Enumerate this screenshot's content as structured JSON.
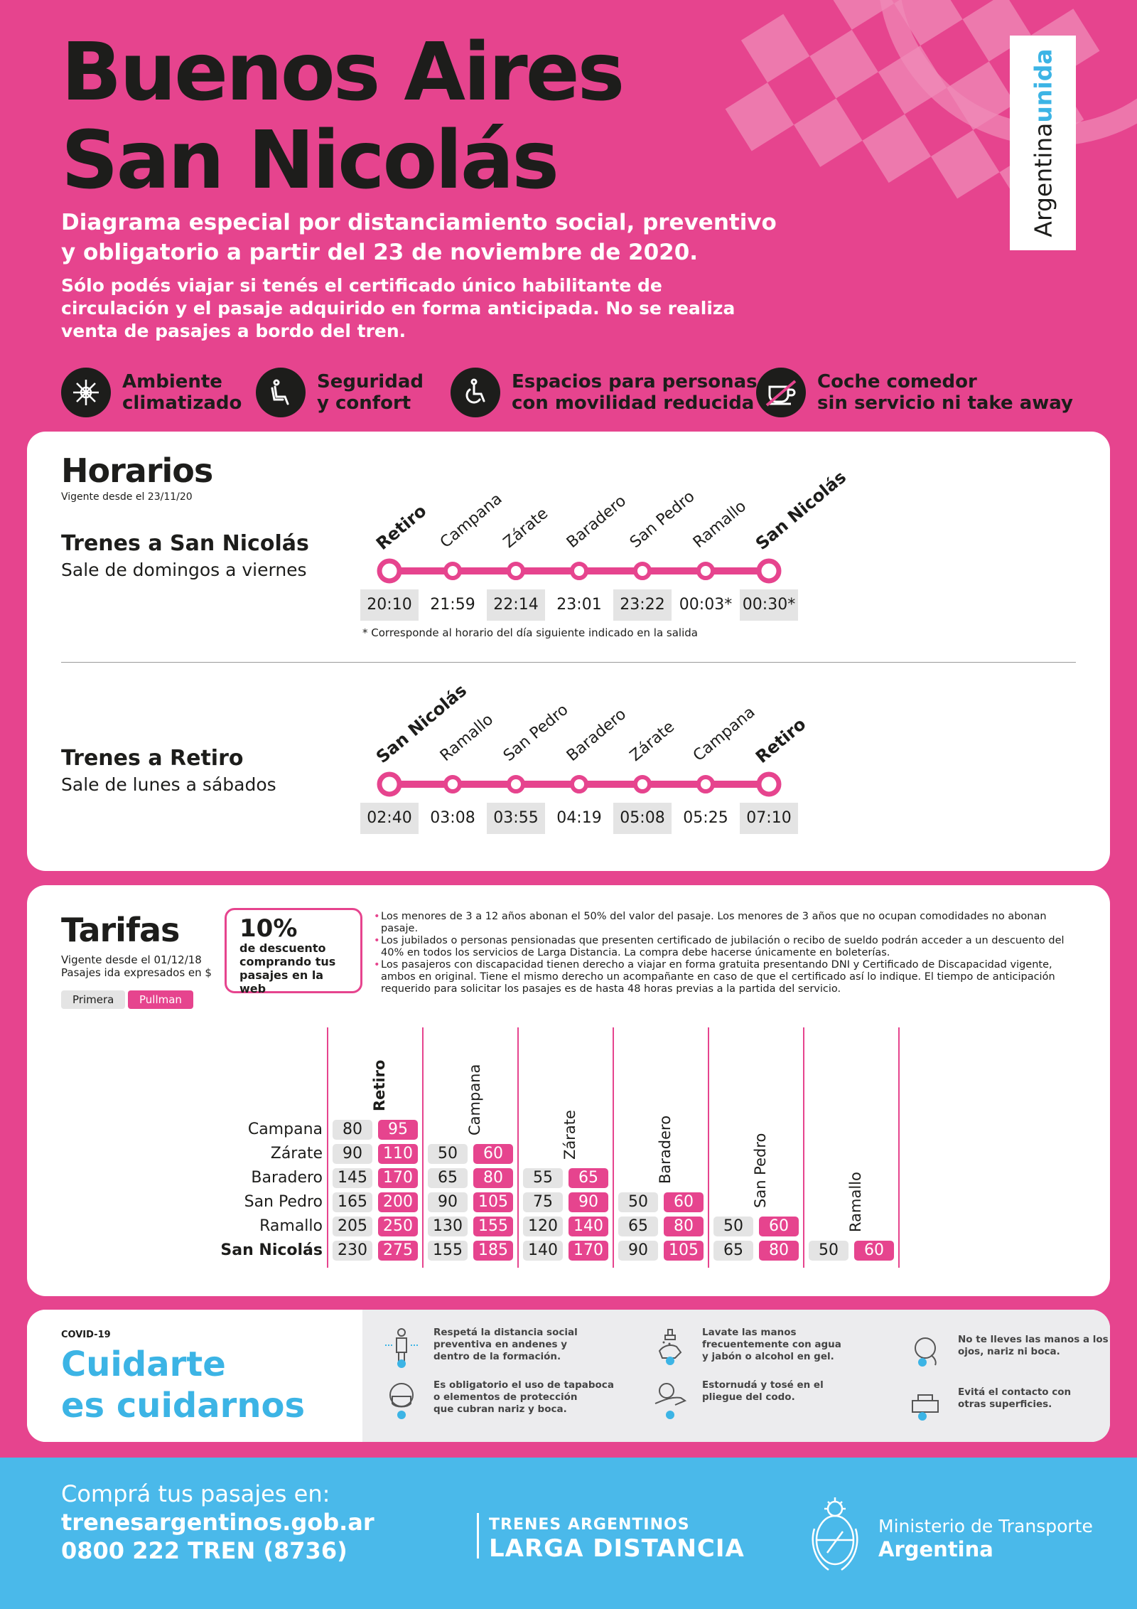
{
  "header": {
    "title_line1": "Buenos Aires",
    "title_line2": "San Nicolás",
    "subtitle": "Diagrama especial por distanciamiento social, preventivo y obligatorio a partir del 23 de noviembre de 2020.",
    "intro": "Sólo podés viajar si tenés el certificado único habilitante de circulación y el pasaje adquirido en forma anticipada. No se realiza venta de pasajes a bordo del tren.",
    "brand_argentina": "Argentina",
    "brand_unida": "unida"
  },
  "features": [
    {
      "label": "Ambiente\nclimatizado",
      "icon": "climate-icon"
    },
    {
      "label": "Seguridad\ny confort",
      "icon": "seat-icon"
    },
    {
      "label": "Espacios para personas\ncon movilidad reducida",
      "icon": "wheelchair-icon"
    },
    {
      "label": "Coche comedor\nsin servicio ni take away",
      "icon": "no-coffee-icon"
    }
  ],
  "horarios": {
    "title": "Horarios",
    "valid": "Vigente desde el 23/11/20",
    "footnote": "* Corresponde al horario del día siguiente indicado en la salida",
    "routes": [
      {
        "name": "Trenes a San Nicolás",
        "days": "Sale de domingos a viernes",
        "stations": [
          "Retiro",
          "Campana",
          "Zárate",
          "Baradero",
          "San Pedro",
          "Ramallo",
          "San Nicolás"
        ],
        "times": [
          "20:10",
          "21:59",
          "22:14",
          "23:01",
          "23:22",
          "00:03*",
          "00:30*"
        ]
      },
      {
        "name": "Trenes a Retiro",
        "days": "Sale de lunes a sábados",
        "stations": [
          "San Nicolás",
          "Ramallo",
          "San Pedro",
          "Baradero",
          "Zárate",
          "Campana",
          "Retiro"
        ],
        "times": [
          "02:40",
          "03:08",
          "03:55",
          "04:19",
          "05:08",
          "05:25",
          "07:10"
        ]
      }
    ]
  },
  "tarifas": {
    "title": "Tarifas",
    "valid_line1": "Vigente desde el 01/12/18",
    "valid_line2": "Pasajes ida expresados en $",
    "legend_primera": "Primera",
    "legend_pullman": "Pullman",
    "discount_big": "10%",
    "discount_small": "de descuento\ncomprando tus\npasajes en la web",
    "notes": [
      "Los menores de 3 a 12 años abonan el 50% del valor del pasaje. Los menores de 3 años que no ocupan comodidades no abonan pasaje.",
      "Los jubilados o personas pensionadas que presenten certificado de jubilación o recibo de sueldo podrán acceder a un descuento del 40% en todos los servicios de Larga Distancia. La compra debe hacerse únicamente en boleterías.",
      "Los pasajeros con discapacidad tienen derecho a viajar en forma gratuita presentando DNI y Certificado de Discapacidad vigente, ambos en original. Tiene el mismo derecho un acompañante en caso de que el certificado así lo indique. El tiempo de anticipación requerido para solicitar los pasajes es de hasta 48 horas previas a la partida del servicio."
    ],
    "columns": [
      "Retiro",
      "Campana",
      "Zárate",
      "Baradero",
      "San Pedro",
      "Ramallo"
    ],
    "rows": [
      {
        "dest": "Campana",
        "fares": [
          [
            80,
            95
          ]
        ]
      },
      {
        "dest": "Zárate",
        "fares": [
          [
            90,
            110
          ],
          [
            50,
            60
          ]
        ]
      },
      {
        "dest": "Baradero",
        "fares": [
          [
            145,
            170
          ],
          [
            65,
            80
          ],
          [
            55,
            65
          ]
        ]
      },
      {
        "dest": "San Pedro",
        "fares": [
          [
            165,
            200
          ],
          [
            90,
            105
          ],
          [
            75,
            90
          ],
          [
            50,
            60
          ]
        ]
      },
      {
        "dest": "Ramallo",
        "fares": [
          [
            205,
            250
          ],
          [
            130,
            155
          ],
          [
            120,
            140
          ],
          [
            65,
            80
          ],
          [
            50,
            60
          ]
        ]
      },
      {
        "dest": "San Nicolás",
        "fares": [
          [
            230,
            275
          ],
          [
            155,
            185
          ],
          [
            140,
            170
          ],
          [
            90,
            105
          ],
          [
            65,
            80
          ],
          [
            50,
            60
          ]
        ]
      }
    ]
  },
  "covid": {
    "tag": "COVID-19",
    "title": "Cuidarte\nes cuidarnos",
    "tips": [
      {
        "text": "Respetá la distancia social\npreventiva en andenes y\ndentro de la formación.",
        "icon": "distance-icon"
      },
      {
        "text": "Lavate las manos\nfrecuentemente con agua\ny jabón o alcohol en gel.",
        "icon": "hand-wash-icon"
      },
      {
        "text": "No te lleves las manos a los\nojos, nariz ni boca.",
        "icon": "no-touch-face-icon"
      },
      {
        "text": "Es obligatorio el uso de tapaboca\no elementos de protección\nque cubran nariz y boca.",
        "icon": "mask-icon"
      },
      {
        "text": "Estornudá y tosé en el\npliegue del codo.",
        "icon": "elbow-sneeze-icon"
      },
      {
        "text": "Evitá el contacto con\notras superficies.",
        "icon": "no-surfaces-icon"
      }
    ]
  },
  "footer": {
    "buy_label": "Comprá tus pasajes en:",
    "website": "trenesargentinos.gob.ar",
    "phone": "0800 222 TREN (8736)",
    "ta_line1": "TRENES ARGENTINOS",
    "ta_line2": "LARGA DISTANCIA",
    "ministry_line1": "Ministerio de Transporte",
    "ministry_line2": "Argentina"
  },
  "colors": {
    "pink": "#e6448e",
    "blue": "#4ab9ea",
    "dark": "#1d1d1b",
    "grey": "#e4e4e4"
  }
}
